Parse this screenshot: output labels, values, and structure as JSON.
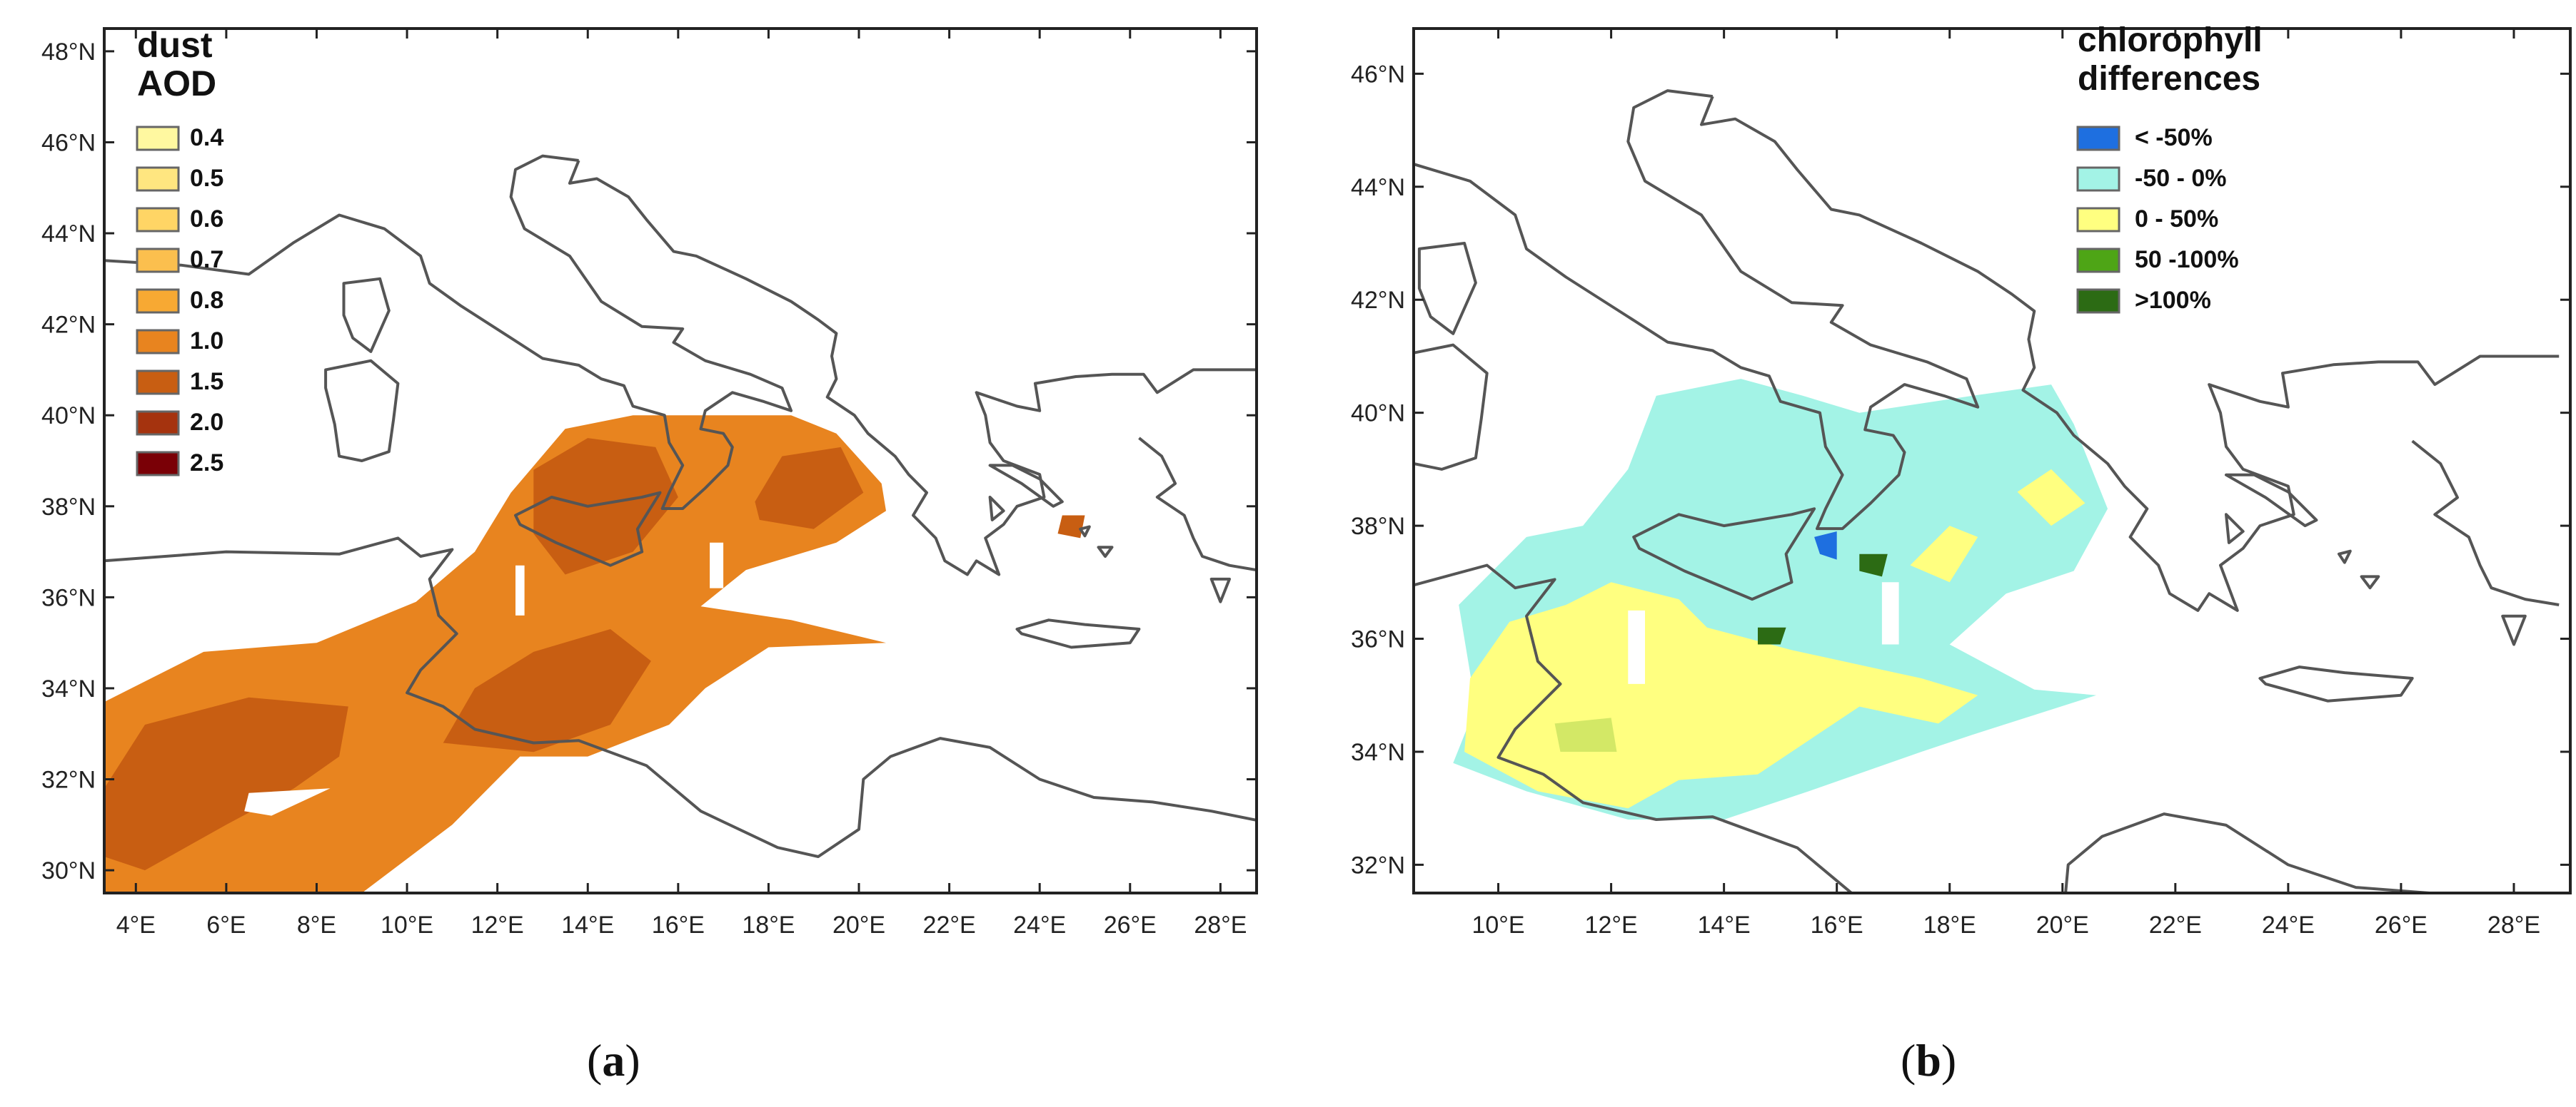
{
  "figure": {
    "panels": [
      {
        "id": "a",
        "caption_open": "(",
        "caption_letter": "a",
        "caption_close": ")",
        "legend_title": [
          "dust",
          "AOD"
        ],
        "legend": [
          {
            "label": "0.4",
            "color": "#fff8a0"
          },
          {
            "label": "0.5",
            "color": "#ffe680"
          },
          {
            "label": "0.6",
            "color": "#ffd565"
          },
          {
            "label": "0.7",
            "color": "#fbbf4e"
          },
          {
            "label": "0.8",
            "color": "#f7a933"
          },
          {
            "label": "1.0",
            "color": "#e8841f"
          },
          {
            "label": "1.5",
            "color": "#c85e12"
          },
          {
            "label": "2.0",
            "color": "#a5330e"
          },
          {
            "label": "2.5",
            "color": "#7a0006"
          }
        ],
        "lat_range": [
          29.5,
          48.5
        ],
        "lon_range": [
          3.3,
          28.8
        ],
        "lat_ticks": [
          "30°N",
          "32°N",
          "34°N",
          "36°N",
          "38°N",
          "40°N",
          "42°N",
          "44°N",
          "46°N",
          "48°N"
        ],
        "lat_values": [
          30,
          32,
          34,
          36,
          38,
          40,
          42,
          44,
          46,
          48
        ],
        "lon_ticks": [
          "4°E",
          "6°E",
          "8°E",
          "10°E",
          "12°E",
          "14°E",
          "16°E",
          "18°E",
          "20°E",
          "22°E",
          "24°E",
          "26°E",
          "28°E"
        ],
        "lon_values": [
          4,
          6,
          8,
          10,
          12,
          14,
          16,
          18,
          20,
          22,
          24,
          26,
          28
        ]
      },
      {
        "id": "b",
        "caption_open": "(",
        "caption_letter": "b",
        "caption_close": ")",
        "legend_title": [
          "chlorophyll",
          "differences"
        ],
        "legend": [
          {
            "label": "< -50%",
            "color": "#1e6fe0"
          },
          {
            "label": "-50 - 0%",
            "color": "#a3f3e6"
          },
          {
            "label": "0 - 50%",
            "color": "#ffff80"
          },
          {
            "label": "50 -100%",
            "color": "#4ea516"
          },
          {
            "label": ">100%",
            "color": "#2c6b14"
          }
        ],
        "lat_range": [
          31.5,
          46.8
        ],
        "lon_range": [
          8.5,
          29.0
        ],
        "lat_ticks": [
          "32°N",
          "34°N",
          "36°N",
          "38°N",
          "40°N",
          "42°N",
          "44°N",
          "46°N"
        ],
        "lat_values": [
          32,
          34,
          36,
          38,
          40,
          42,
          44,
          46
        ],
        "lon_ticks": [
          "10°E",
          "12°E",
          "14°E",
          "16°E",
          "18°E",
          "20°E",
          "22°E",
          "24°E",
          "26°E",
          "28°E"
        ],
        "lon_values": [
          10,
          12,
          14,
          16,
          18,
          20,
          22,
          24,
          26,
          28
        ]
      }
    ],
    "colors": {
      "coast": "#555555",
      "frame": "#222222",
      "dust_main": "#e8841f",
      "dust_high": "#c85e12",
      "chl_main": "#a3f3e6",
      "chl_pos": "#ffff80",
      "chl_pos_high": "#4ea516",
      "chl_neg": "#1e6fe0",
      "chl_very_high": "#2c6b14"
    }
  }
}
